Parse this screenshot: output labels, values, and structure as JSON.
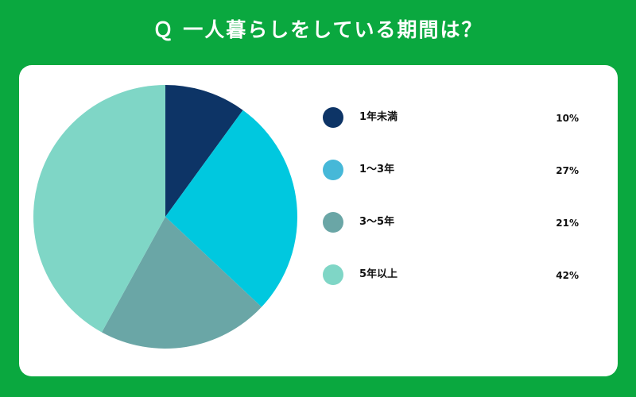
{
  "title": "Ｑ 一人暮らしをしている期間は？",
  "colors": {
    "background": "#0aa83f",
    "card": "#ffffff"
  },
  "chart_data": {
    "type": "pie",
    "title": "",
    "categories": [
      "1年未満",
      "1〜3年",
      "3〜5年",
      "5年以上"
    ],
    "values": [
      10,
      27,
      21,
      42
    ],
    "value_labels": [
      "10%",
      "27%",
      "21%",
      "42%"
    ],
    "colors": [
      "#0d3466",
      "#00c8df",
      "#6aa6a6",
      "#7fd6c6"
    ],
    "legend_colors": [
      "#0d3466",
      "#46b8d8",
      "#6aa6a6",
      "#7fd6c6"
    ],
    "legend_position": "right"
  }
}
